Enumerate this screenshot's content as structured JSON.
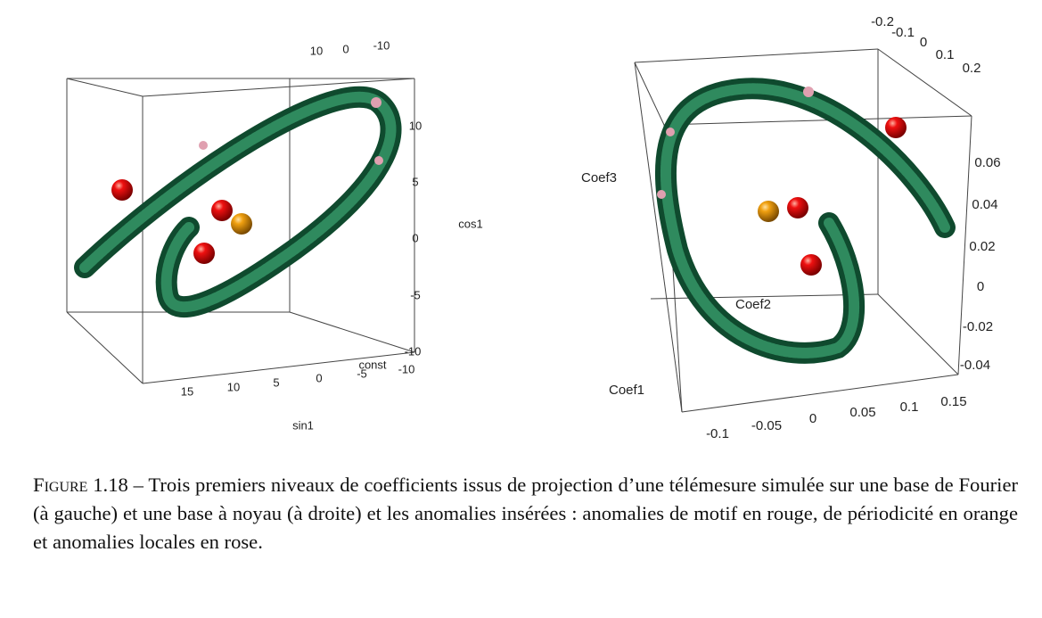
{
  "panels": [
    {
      "axes": [
        {
          "label": "sin1",
          "ticks": [
            "15",
            "10",
            "5",
            "0",
            "-5",
            "-10"
          ]
        },
        {
          "label": "const",
          "ticks": [
            "10",
            "0",
            "-10"
          ]
        },
        {
          "label": "cos1",
          "ticks": [
            "10",
            "5",
            "0",
            "-5",
            "-10"
          ]
        }
      ]
    },
    {
      "axes": [
        {
          "label": "Coef1",
          "ticks": [
            "-0.1",
            "-0.05",
            "0",
            "0.05",
            "0.1",
            "0.15"
          ]
        },
        {
          "label": "Coef2",
          "ticks": [
            "-0.2",
            "-0.1",
            "0",
            "0.1",
            "0.2"
          ]
        },
        {
          "label": "Coef3",
          "ticks": [
            "0.06",
            "0.04",
            "0.02",
            "0",
            "-0.02",
            "-0.04"
          ]
        }
      ]
    }
  ],
  "caption": {
    "label": "Figure 1.18",
    "text": "– Trois premiers niveaux de coefficients issus de projection d’une télémesure simulée sur une base de Fourier (à gauche) et une base à noyau (à droite) et les anomalies insérées : anomalies de motif en rouge, de périodicité en orange et anomalies locales en rose."
  }
}
